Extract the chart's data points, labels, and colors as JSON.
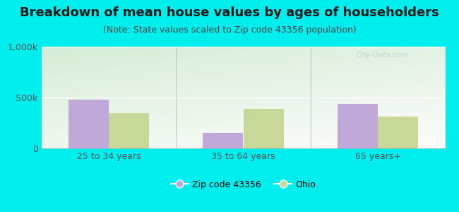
{
  "title": "Breakdown of mean house values by ages of householders",
  "subtitle": "(Note: State values scaled to Zip code 43356 population)",
  "categories": [
    "25 to 34 years",
    "35 to 64 years",
    "65 years+"
  ],
  "zip_values": [
    480000,
    155000,
    440000
  ],
  "ohio_values": [
    350000,
    390000,
    310000
  ],
  "ylim": [
    0,
    1000000
  ],
  "ytick_labels": [
    "0",
    "500k",
    "1,000k"
  ],
  "zip_color": "#c0a8d8",
  "ohio_color": "#c8d898",
  "background_color": "#00eeee",
  "legend_zip": "Zip code 43356",
  "legend_ohio": "Ohio",
  "bar_width": 0.3,
  "title_fontsize": 13,
  "subtitle_fontsize": 9,
  "axis_fontsize": 9,
  "tick_label_color": "#555555",
  "watermark": "City-Data.com"
}
